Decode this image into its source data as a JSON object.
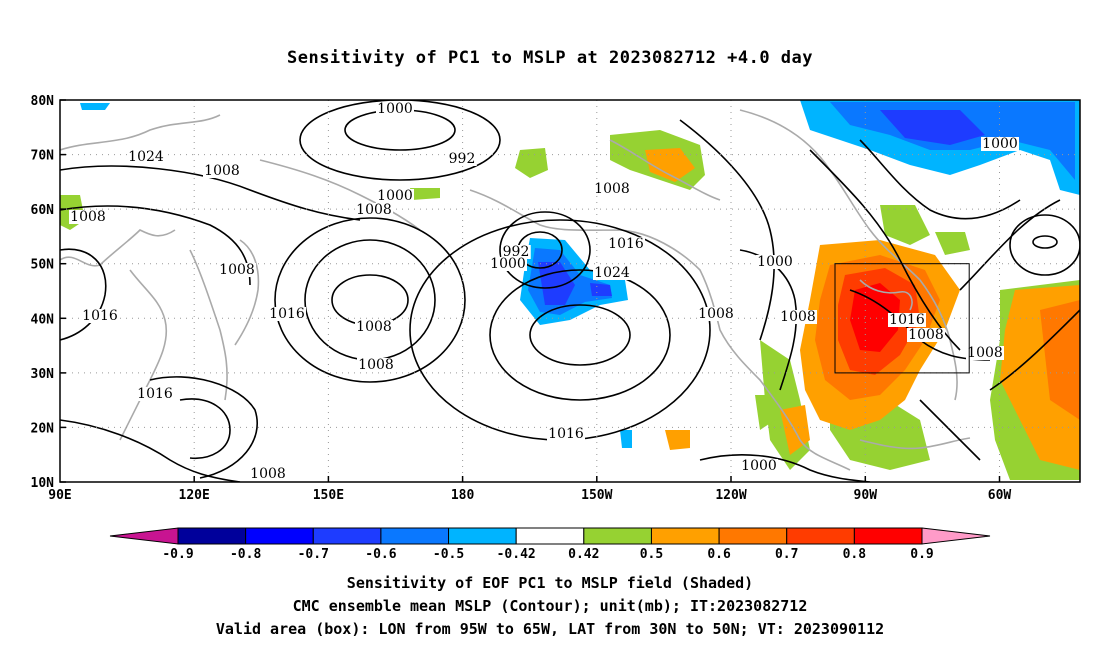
{
  "title": "Sensitivity of PC1 to MSLP at 2023082712 +4.0 day",
  "map": {
    "lat_ticks": [
      "80N",
      "70N",
      "60N",
      "50N",
      "40N",
      "30N",
      "20N",
      "10N"
    ],
    "lon_ticks": [
      "90E",
      "120E",
      "150E",
      "180",
      "150W",
      "120W",
      "90W",
      "60W"
    ],
    "valid_box": {
      "lon": [
        "95W",
        "65W"
      ],
      "lat": [
        "30N",
        "50N"
      ]
    }
  },
  "contour_labels": [
    "1000",
    "992",
    "1024",
    "1008",
    "1008",
    "1016",
    "1000",
    "1008",
    "1008",
    "1016",
    "992",
    "1000",
    "1024",
    "1016",
    "1008",
    "1016",
    "1008",
    "1008",
    "1016",
    "1008",
    "1000",
    "1008",
    "1008",
    "1016",
    "1008",
    "1008",
    "1000",
    "1000"
  ],
  "colorbar": {
    "labels": [
      "-0.9",
      "-0.8",
      "-0.7",
      "-0.6",
      "-0.5",
      "-0.42",
      "0.42",
      "0.5",
      "0.6",
      "0.7",
      "0.8",
      "0.9"
    ],
    "colors": [
      "#c81491",
      "#00009b",
      "#0000ff",
      "#1e3cff",
      "#0a78ff",
      "#00b4ff",
      "#ffffff",
      "#96d232",
      "#ffa000",
      "#ff7800",
      "#ff3c00",
      "#ff0000",
      "#ff9bc8"
    ]
  },
  "captions": {
    "line1": "Sensitivity of EOF PC1 to MSLP field (Shaded)",
    "line2": "CMC ensemble mean MSLP (Contour); unit(mb); IT:2023082712",
    "line3": "Valid area (box): LON from 95W to 65W, LAT from 30N to 50N; VT: 2023090112"
  }
}
